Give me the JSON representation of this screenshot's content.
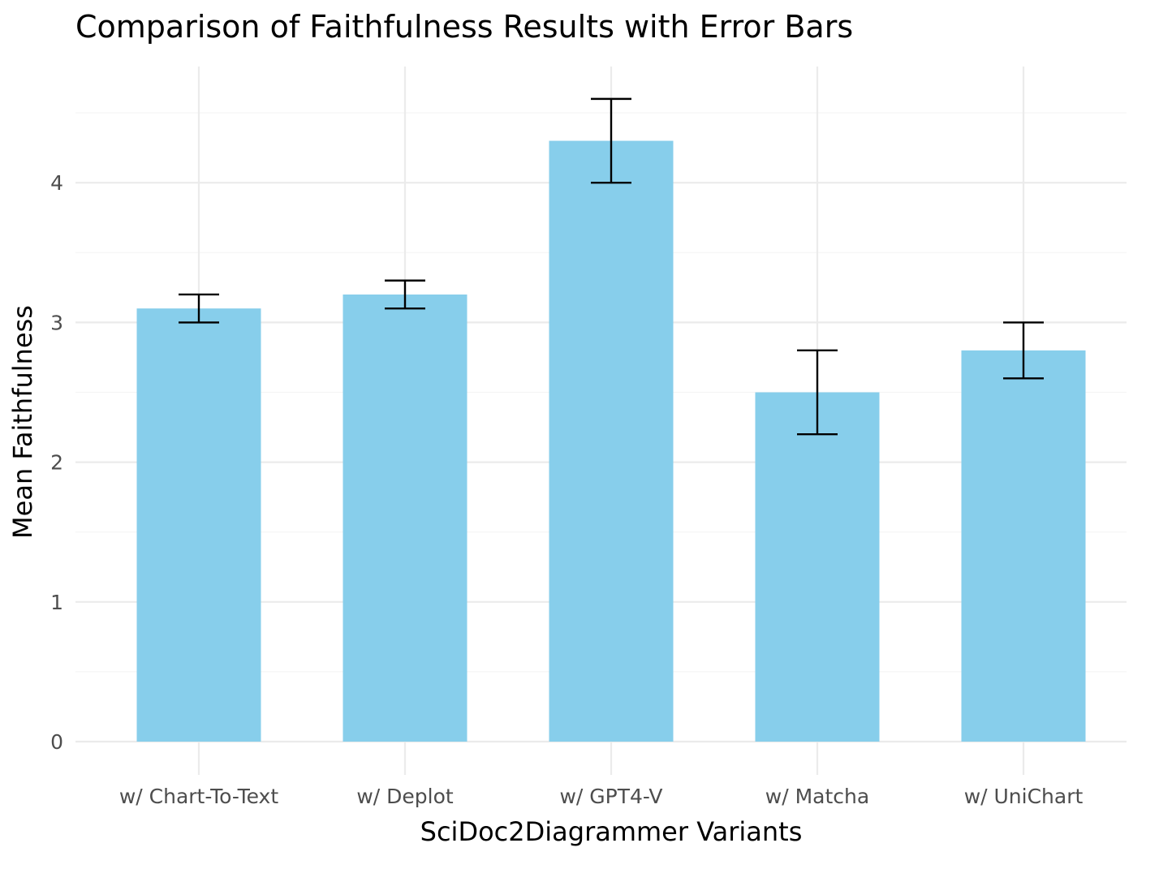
{
  "chart_data": {
    "type": "bar",
    "title": "Comparison of Faithfulness Results with Error Bars",
    "xlabel": "SciDoc2Diagrammer Variants",
    "ylabel": "Mean Faithfulness",
    "categories": [
      "w/ Chart-To-Text",
      "w/ Deplot",
      "w/ GPT4-V",
      "w/ Matcha",
      "w/ UniChart"
    ],
    "values": [
      3.1,
      3.2,
      4.3,
      2.5,
      2.8
    ],
    "error_low": [
      3.0,
      3.1,
      4.0,
      2.2,
      2.6
    ],
    "error_high": [
      3.2,
      3.3,
      4.6,
      2.8,
      3.0
    ],
    "yticks": [
      0,
      1,
      2,
      3,
      4
    ],
    "ylim": [
      0,
      4.8
    ],
    "grid": true,
    "bar_color": "#87CEEB",
    "error_color": "#000000"
  }
}
